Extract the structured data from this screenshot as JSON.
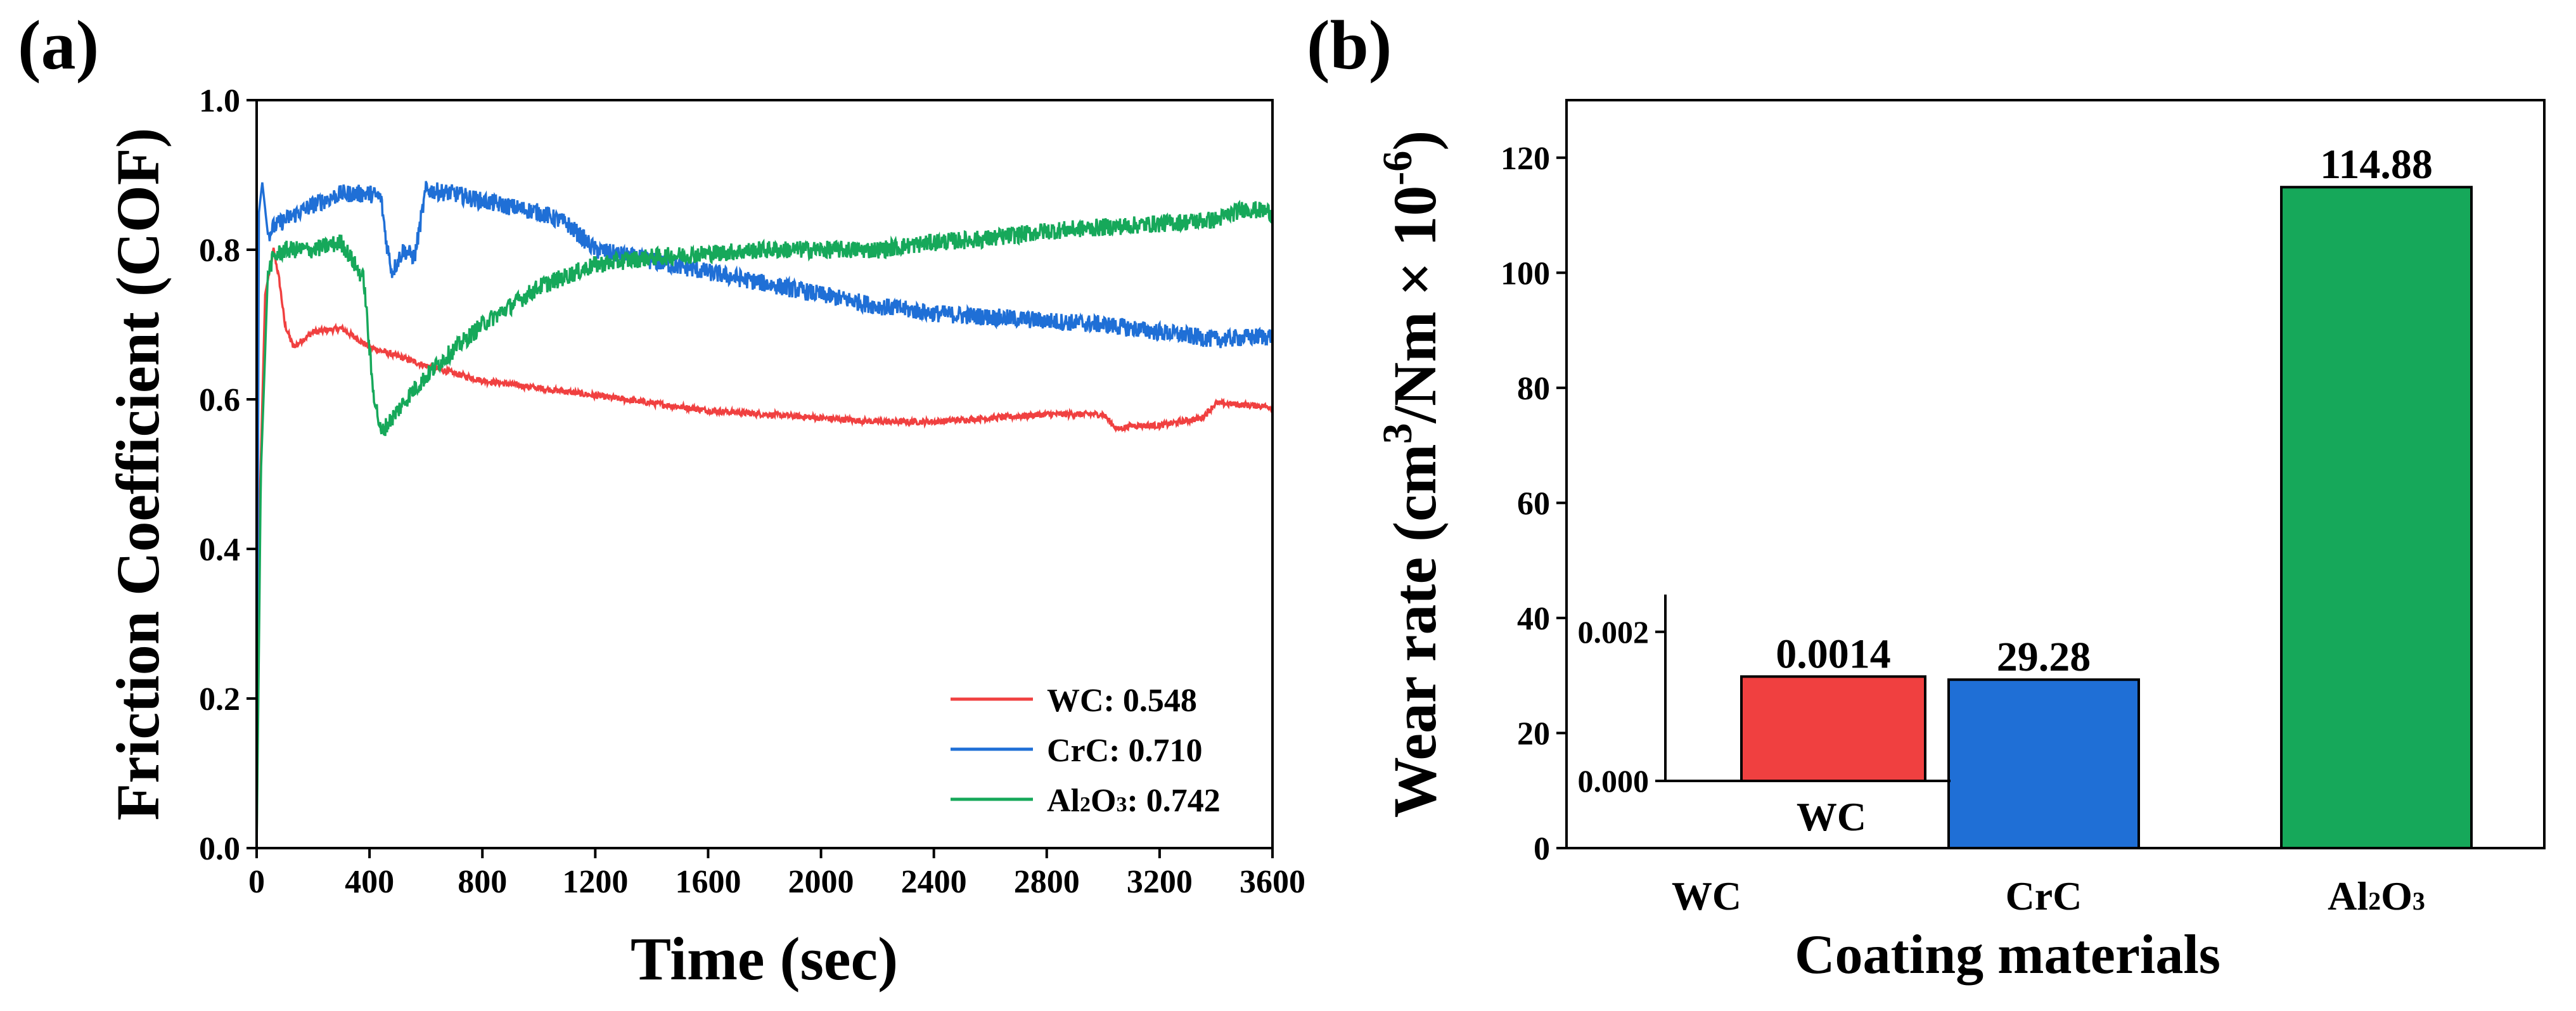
{
  "panels": {
    "a": {
      "label": "(a)"
    },
    "b": {
      "label": "(b)"
    }
  },
  "colors": {
    "WC": "#f04040",
    "CrC": "#1f6fd6",
    "Al2O3": "#16a85a",
    "axis": "#000000"
  },
  "chart_data": [
    {
      "type": "line",
      "panel": "(a)",
      "title": "",
      "xlabel": "Time (sec)",
      "ylabel": "Friction Coefficient (COF)",
      "xlim": [
        0,
        3600
      ],
      "ylim": [
        0,
        1.0
      ],
      "xticks": [
        0,
        400,
        800,
        1200,
        1600,
        2000,
        2400,
        2800,
        3200,
        3600
      ],
      "yticks": [
        0.0,
        0.2,
        0.4,
        0.6,
        0.8,
        1.0
      ],
      "xtick_labels": [
        "0",
        "400",
        "800",
        "1200",
        "1600",
        "2000",
        "2400",
        "2800",
        "3200",
        "3600"
      ],
      "ytick_labels": [
        "0.0",
        "0.2",
        "0.4",
        "0.6",
        "0.8",
        "1.0"
      ],
      "legend_position": "bottom-right",
      "series": [
        {
          "name": "WC",
          "legend": "WC: 0.548",
          "color": "#f04040",
          "noise": 0.004,
          "x": [
            0,
            10,
            30,
            60,
            80,
            100,
            130,
            200,
            300,
            400,
            600,
            800,
            1000,
            1200,
            1400,
            1600,
            1800,
            2000,
            2200,
            2400,
            2600,
            2800,
            3000,
            3050,
            3100,
            3200,
            3350,
            3400,
            3600
          ],
          "y": [
            0.0,
            0.45,
            0.74,
            0.8,
            0.76,
            0.7,
            0.67,
            0.69,
            0.695,
            0.67,
            0.645,
            0.625,
            0.615,
            0.605,
            0.595,
            0.585,
            0.58,
            0.575,
            0.57,
            0.57,
            0.575,
            0.58,
            0.58,
            0.56,
            0.565,
            0.565,
            0.575,
            0.595,
            0.59
          ]
        },
        {
          "name": "CrC",
          "legend": "CrC: 0.710",
          "color": "#1f6fd6",
          "noise": 0.012,
          "x": [
            0,
            8,
            20,
            40,
            60,
            100,
            200,
            300,
            400,
            440,
            460,
            480,
            520,
            560,
            600,
            700,
            800,
            1000,
            1100,
            1200,
            1400,
            1600,
            1800,
            2000,
            2200,
            2400,
            2600,
            2800,
            3000,
            3200,
            3400,
            3600
          ],
          "y": [
            0.0,
            0.85,
            0.89,
            0.82,
            0.83,
            0.84,
            0.86,
            0.875,
            0.875,
            0.87,
            0.81,
            0.77,
            0.8,
            0.79,
            0.88,
            0.875,
            0.865,
            0.85,
            0.835,
            0.8,
            0.785,
            0.77,
            0.755,
            0.74,
            0.725,
            0.715,
            0.71,
            0.705,
            0.7,
            0.69,
            0.68,
            0.685
          ]
        },
        {
          "name": "Al2O3",
          "legend": "Al2O3: 0.742",
          "color": "#16a85a",
          "noise": 0.012,
          "x": [
            0,
            15,
            40,
            60,
            100,
            200,
            300,
            380,
            410,
            440,
            480,
            550,
            650,
            800,
            1000,
            1200,
            1400,
            1600,
            1800,
            2000,
            2200,
            2400,
            2600,
            2800,
            3000,
            3200,
            3400,
            3500,
            3600
          ],
          "y": [
            0.0,
            0.5,
            0.77,
            0.79,
            0.8,
            0.8,
            0.81,
            0.76,
            0.62,
            0.555,
            0.575,
            0.61,
            0.65,
            0.7,
            0.75,
            0.78,
            0.79,
            0.795,
            0.8,
            0.8,
            0.8,
            0.81,
            0.815,
            0.825,
            0.83,
            0.835,
            0.84,
            0.855,
            0.85
          ]
        }
      ]
    },
    {
      "type": "bar",
      "panel": "(b)",
      "title": "",
      "xlabel": "Coating materials",
      "ylabel": "Wear rate (cm3/Nm × 10-6)",
      "ylabel_parts": {
        "a": "Wear rate (cm",
        "b": "3",
        "c": "/Nm × 10",
        "d": "-6",
        "e": ")"
      },
      "ylim": [
        0,
        130
      ],
      "yticks": [
        0,
        20,
        40,
        60,
        80,
        100,
        120
      ],
      "ytick_labels": [
        "0",
        "20",
        "40",
        "60",
        "80",
        "100",
        "120"
      ],
      "categories": [
        "WC",
        "CrC",
        "Al2O3"
      ],
      "values": [
        0.0014,
        29.28,
        114.88
      ],
      "data_labels": [
        "0.0014",
        "29.28",
        "114.88"
      ],
      "colors": [
        "#f04040",
        "#1f6fd6",
        "#16a85a"
      ],
      "inset": {
        "category": "WC",
        "value": 0.0014,
        "ylim": [
          0,
          0.0025
        ],
        "yticks": [
          0,
          0.002
        ],
        "ytick_labels": [
          "0.000",
          "0.002"
        ],
        "data_label": "0.0014",
        "color": "#f04040"
      }
    }
  ]
}
